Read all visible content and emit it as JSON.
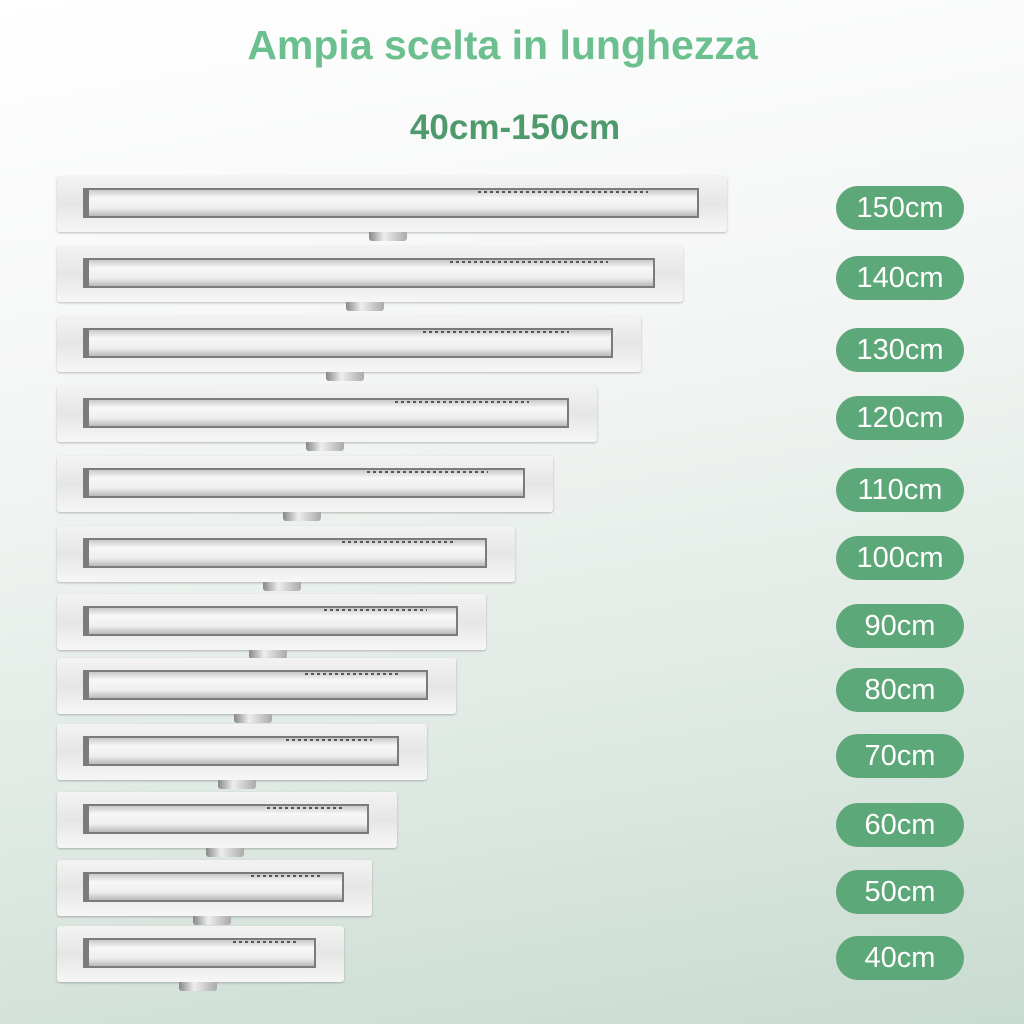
{
  "title": "Ampia scelta in lunghezza",
  "subtitle": "40cm-150cm",
  "colors": {
    "title": "#6cc08f",
    "subtitle": "#4f9a6c",
    "badge": "#5da878"
  },
  "sizes": [
    {
      "label": "150cm",
      "length_cm": 150
    },
    {
      "label": "140cm",
      "length_cm": 140
    },
    {
      "label": "130cm",
      "length_cm": 130
    },
    {
      "label": "120cm",
      "length_cm": 120
    },
    {
      "label": "110cm",
      "length_cm": 110
    },
    {
      "label": "100cm",
      "length_cm": 100
    },
    {
      "label": "90cm",
      "length_cm": 90
    },
    {
      "label": "80cm",
      "length_cm": 80
    },
    {
      "label": "70cm",
      "length_cm": 70
    },
    {
      "label": "60cm",
      "length_cm": 60
    },
    {
      "label": "50cm",
      "length_cm": 50
    },
    {
      "label": "40cm",
      "length_cm": 40
    }
  ]
}
